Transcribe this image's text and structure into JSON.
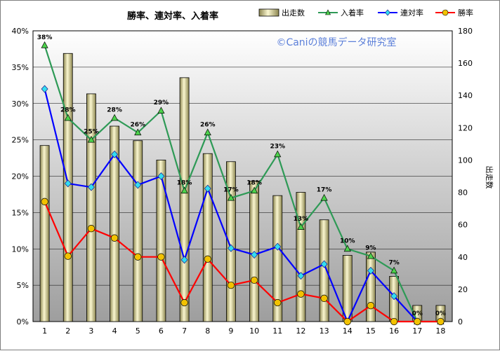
{
  "chart_data": {
    "type": "bar",
    "title": "勝率、連対率、入着率",
    "watermark": "©Caniの競馬データ研究室",
    "categories": [
      "1",
      "2",
      "3",
      "4",
      "5",
      "6",
      "7",
      "8",
      "9",
      "10",
      "11",
      "12",
      "13",
      "14",
      "15",
      "16",
      "17",
      "18"
    ],
    "y2label": "出走数",
    "ylim": [
      0,
      40
    ],
    "y2lim": [
      0,
      180
    ],
    "y_ticks": [
      "0%",
      "5%",
      "10%",
      "15%",
      "20%",
      "25%",
      "30%",
      "35%",
      "40%"
    ],
    "y2_ticks": [
      "0",
      "20",
      "40",
      "60",
      "80",
      "100",
      "120",
      "140",
      "160",
      "180"
    ],
    "grid": true,
    "legend_position": "top-right",
    "series": [
      {
        "name": "出走数",
        "type": "bar",
        "axis": "right",
        "color": "#e6e0a6",
        "values": [
          109,
          166,
          141,
          121,
          112,
          100,
          151,
          104,
          99,
          87,
          78,
          80,
          63,
          41,
          43,
          28,
          10,
          10
        ]
      },
      {
        "name": "入着率",
        "type": "line",
        "axis": "left",
        "color": "#2e9a56",
        "marker": "triangle",
        "values": [
          38,
          28,
          25,
          28,
          26,
          29,
          18,
          26,
          17,
          18,
          23,
          13,
          17,
          10,
          9,
          7,
          0,
          0
        ]
      },
      {
        "name": "連対率",
        "type": "line",
        "axis": "left",
        "color": "#0000ff",
        "marker": "diamond",
        "values": [
          32,
          19,
          18.5,
          23,
          18.8,
          20,
          8.5,
          18.3,
          10.1,
          9.2,
          10.3,
          6.3,
          7.9,
          0,
          7,
          3.5,
          0,
          null
        ]
      },
      {
        "name": "勝率",
        "type": "line",
        "axis": "left",
        "color": "#ff0000",
        "marker": "circle",
        "values": [
          16.5,
          9,
          12.8,
          11.5,
          8.9,
          8.9,
          2.6,
          8.6,
          5,
          5.7,
          2.6,
          3.8,
          3.2,
          0,
          2.2,
          0,
          0,
          0
        ]
      }
    ],
    "data_labels": [
      "38%",
      "28%",
      "25%",
      "28%",
      "26%",
      "29%",
      "18%",
      "26%",
      "17%",
      "18%",
      "23%",
      "13%",
      "17%",
      "10%",
      "9%",
      "7%",
      "0%",
      "0%"
    ]
  }
}
